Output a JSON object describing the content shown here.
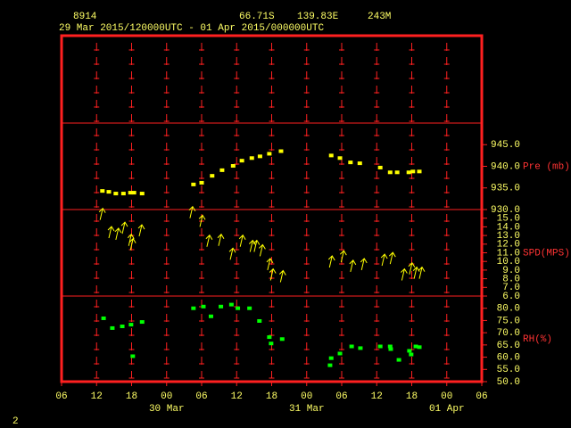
{
  "header": {
    "station": "8914",
    "lat": "66.71S",
    "lon": "139.83E",
    "elev": "243M",
    "period": "29 Mar 2015/120000UTC - 01 Apr 2015/000000UTC"
  },
  "page_number": "2",
  "xaxis": {
    "xlim": [
      6,
      78
    ],
    "xticks": [
      {
        "value": 6,
        "label": "06"
      },
      {
        "value": 12,
        "label": "12"
      },
      {
        "value": 18,
        "label": "18"
      },
      {
        "value": 24,
        "label": "00"
      },
      {
        "value": 30,
        "label": "06"
      },
      {
        "value": 36,
        "label": "12"
      },
      {
        "value": 42,
        "label": "18"
      },
      {
        "value": 48,
        "label": "00"
      },
      {
        "value": 54,
        "label": "06"
      },
      {
        "value": 60,
        "label": "12"
      },
      {
        "value": 66,
        "label": "18"
      },
      {
        "value": 72,
        "label": "00"
      },
      {
        "value": 78,
        "label": "06"
      }
    ],
    "dates": [
      {
        "value": 24,
        "label": "30 Mar"
      },
      {
        "value": 48,
        "label": "31 Mar"
      },
      {
        "value": 72,
        "label": "01 Apr"
      }
    ]
  },
  "chart_data": [
    {
      "type": "scatter",
      "y_label": "Pre (mb)",
      "color": "#ffff00",
      "ylim": [
        930,
        950
      ],
      "yticks": [
        {
          "value": 930,
          "label": "930.0"
        },
        {
          "value": 935,
          "label": "935.0"
        },
        {
          "value": 940,
          "label": "940.0"
        },
        {
          "value": 945,
          "label": "945.0"
        }
      ],
      "x": [
        13.0,
        14.1,
        15.3,
        16.6,
        17.8,
        18.4,
        19.8,
        28.6,
        30.0,
        31.8,
        33.5,
        35.4,
        36.9,
        38.6,
        40.0,
        41.6,
        43.6,
        52.2,
        53.7,
        55.5,
        57.1,
        60.6,
        62.3,
        63.5,
        65.5,
        66.2,
        67.3
      ],
      "values": [
        934.3,
        934.1,
        933.7,
        933.7,
        933.9,
        933.9,
        933.7,
        935.8,
        936.2,
        937.8,
        939.1,
        940.1,
        941.3,
        941.9,
        942.3,
        942.9,
        943.5,
        942.5,
        941.9,
        940.9,
        940.7,
        939.7,
        938.6,
        938.6,
        938.6,
        938.8,
        938.8
      ]
    },
    {
      "type": "vector",
      "y_label": "SPD(MPS)",
      "color": "#ffff00",
      "ylim": [
        6,
        16
      ],
      "yticks": [
        {
          "value": 6,
          "label": "6.0"
        },
        {
          "value": 7,
          "label": "7.0"
        },
        {
          "value": 8,
          "label": "8.0"
        },
        {
          "value": 9,
          "label": "9.0"
        },
        {
          "value": 10,
          "label": "10.0"
        },
        {
          "value": 11,
          "label": "11.0"
        },
        {
          "value": 12,
          "label": "12.0"
        },
        {
          "value": 13,
          "label": "13.0"
        },
        {
          "value": 14,
          "label": "14.0"
        },
        {
          "value": 15,
          "label": "15.0"
        }
      ],
      "x": [
        12.6,
        14.1,
        15.3,
        16.4,
        17.5,
        17.8,
        19.3,
        28.0,
        29.7,
        30.9,
        32.9,
        34.9,
        36.6,
        38.3,
        39.0,
        40.0,
        41.3,
        41.8,
        43.5,
        51.9,
        53.9,
        55.5,
        57.4,
        60.9,
        62.3,
        64.3,
        65.6,
        66.4,
        67.3
      ],
      "values": [
        14.8,
        12.7,
        12.5,
        13.2,
        11.8,
        11.3,
        12.9,
        15.0,
        14.0,
        11.7,
        11.8,
        10.2,
        11.7,
        11.1,
        11.1,
        10.6,
        9.0,
        7.8,
        7.6,
        9.3,
        9.9,
        8.8,
        9.0,
        9.5,
        9.7,
        7.8,
        8.5,
        8.0,
        8.0
      ]
    },
    {
      "type": "scatter",
      "y_label": "RH(%)",
      "color": "#00ff00",
      "ylim": [
        50,
        85
      ],
      "yticks": [
        {
          "value": 50,
          "label": "50.0"
        },
        {
          "value": 55,
          "label": "55.0"
        },
        {
          "value": 60,
          "label": "60.0"
        },
        {
          "value": 65,
          "label": "65.0"
        },
        {
          "value": 70,
          "label": "70.0"
        },
        {
          "value": 75,
          "label": "75.0"
        },
        {
          "value": 80,
          "label": "80.0"
        }
      ],
      "x": [
        13.2,
        14.7,
        16.4,
        17.9,
        18.2,
        19.8,
        28.6,
        30.3,
        31.6,
        33.3,
        35.1,
        36.2,
        38.2,
        39.9,
        41.6,
        41.9,
        43.8,
        52.2,
        52.0,
        53.7,
        55.7,
        57.2,
        60.6,
        62.3,
        62.4,
        63.8,
        65.6,
        65.9,
        66.7,
        67.3
      ],
      "values": [
        75.9,
        71.9,
        72.6,
        73.3,
        60.4,
        74.4,
        80.0,
        80.7,
        76.7,
        80.7,
        81.5,
        80.0,
        80.0,
        74.8,
        68.2,
        65.6,
        67.4,
        59.6,
        56.7,
        61.5,
        64.4,
        63.7,
        64.4,
        64.4,
        63.3,
        58.9,
        62.6,
        61.1,
        64.4,
        64.1
      ]
    }
  ]
}
